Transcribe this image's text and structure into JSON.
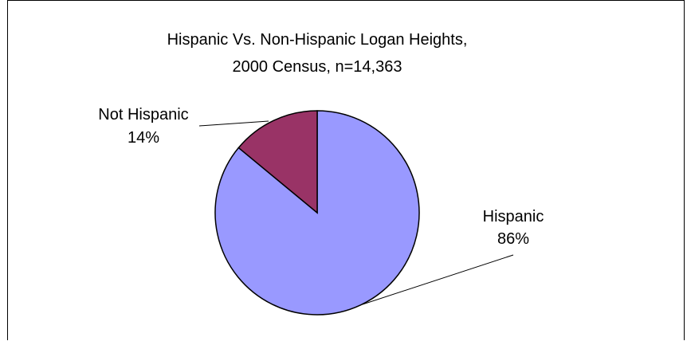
{
  "chart_data": {
    "type": "pie",
    "title_lines": [
      "Hispanic Vs. Non-Hispanic Logan Heights,",
      "2000 Census, n=14,363"
    ],
    "slices": [
      {
        "label": "Hispanic",
        "percent_label": "86%",
        "value": 86,
        "color": "#9999ff"
      },
      {
        "label": "Not Hispanic",
        "percent_label": "14%",
        "value": 14,
        "color": "#993366"
      }
    ],
    "legend": "none",
    "slice_outline_color": "#000000"
  }
}
